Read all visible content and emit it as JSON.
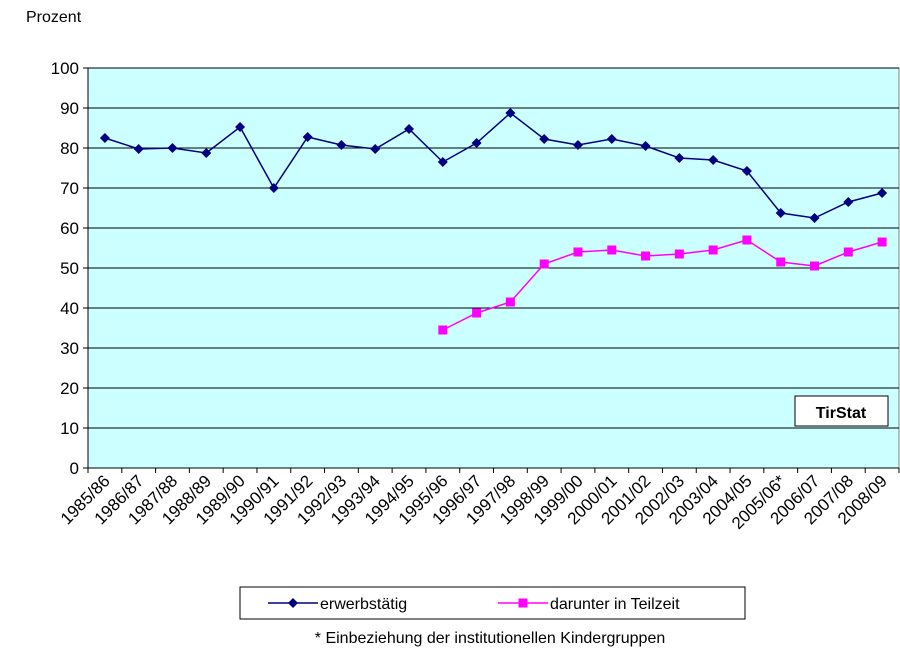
{
  "chart_data": {
    "type": "line",
    "y_label": "Prozent",
    "annotation": "TirStat",
    "note": "* Einbeziehung der institutionellen Kindergruppen",
    "categories": [
      "1985/86",
      "1986/87",
      "1987/88",
      "1988/89",
      "1989/90",
      "1990/91",
      "1991/92",
      "1992/93",
      "1993/94",
      "1994/95",
      "1995/96",
      "1996/97",
      "1997/98",
      "1998/99",
      "1999/00",
      "2000/01",
      "2001/02",
      "2002/03",
      "2003/04",
      "2004/05",
      "2005/06*",
      "2006/07",
      "2007/08",
      "2008/09"
    ],
    "series": [
      {
        "name": "erwerbstätig",
        "color": "#000080",
        "marker": "diamond",
        "values": [
          82.5,
          79.75,
          80,
          78.75,
          85.25,
          70,
          82.75,
          80.75,
          79.75,
          84.75,
          76.5,
          81.25,
          88.75,
          82.25,
          80.75,
          82.25,
          80.5,
          77.5,
          77,
          74.25,
          63.75,
          62.5,
          66.5,
          68.75
        ]
      },
      {
        "name": "darunter in Teilzeit",
        "color": "#ff00ff",
        "marker": "square",
        "values": [
          null,
          null,
          null,
          null,
          null,
          null,
          null,
          null,
          null,
          null,
          34.5,
          38.75,
          41.5,
          51,
          54,
          54.5,
          53,
          53.5,
          54.5,
          57,
          51.5,
          50.5,
          54,
          56.5
        ]
      }
    ],
    "ylim": [
      0,
      100
    ],
    "yticks": [
      0,
      10,
      20,
      30,
      40,
      50,
      60,
      70,
      80,
      90,
      100
    ],
    "grid": true,
    "background": "#ccffff"
  }
}
